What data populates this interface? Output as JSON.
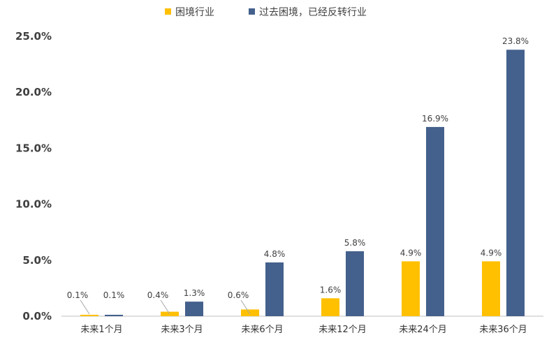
{
  "chart_data": {
    "type": "bar",
    "title": "",
    "xlabel": "",
    "ylabel": "",
    "categories": [
      "未来1个月",
      "未来3个月",
      "未来6个月",
      "未来12个月",
      "未来24个月",
      "未来36个月"
    ],
    "series": [
      {
        "name": "困境行业",
        "color": "#FFC000",
        "values": [
          0.1,
          0.4,
          0.6,
          1.6,
          4.9,
          4.9
        ],
        "labels": [
          "0.1%",
          "0.4%",
          "0.6%",
          "1.6%",
          "4.9%",
          "4.9%"
        ]
      },
      {
        "name": "过去困境，已经反转行业",
        "color": "#44608C",
        "values": [
          0.1,
          1.3,
          4.8,
          5.8,
          16.9,
          23.8
        ],
        "labels": [
          "0.1%",
          "1.3%",
          "4.8%",
          "5.8%",
          "16.9%",
          "23.8%"
        ]
      }
    ],
    "ylim": [
      0,
      25
    ],
    "yticks": [
      0,
      5,
      10,
      15,
      20,
      25
    ],
    "ytick_labels": [
      "0.0%",
      "5.0%",
      "10.0%",
      "15.0%",
      "20.0%",
      "25.0%"
    ],
    "grid": false,
    "legend": "top-center"
  }
}
